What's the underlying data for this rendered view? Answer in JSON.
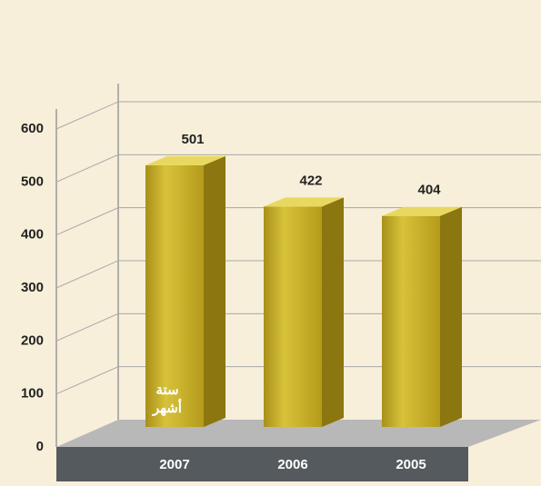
{
  "chart_data": {
    "type": "bar3d",
    "categories": [
      "2007",
      "2006",
      "2005"
    ],
    "values": [
      501,
      422,
      404
    ],
    "color": "#c4aa1c",
    "ylim": [
      0,
      600
    ],
    "yticks": [
      0,
      100,
      200,
      300,
      400,
      500,
      600
    ],
    "grid": true,
    "annotation": [
      "ستة",
      "أشهر"
    ]
  }
}
